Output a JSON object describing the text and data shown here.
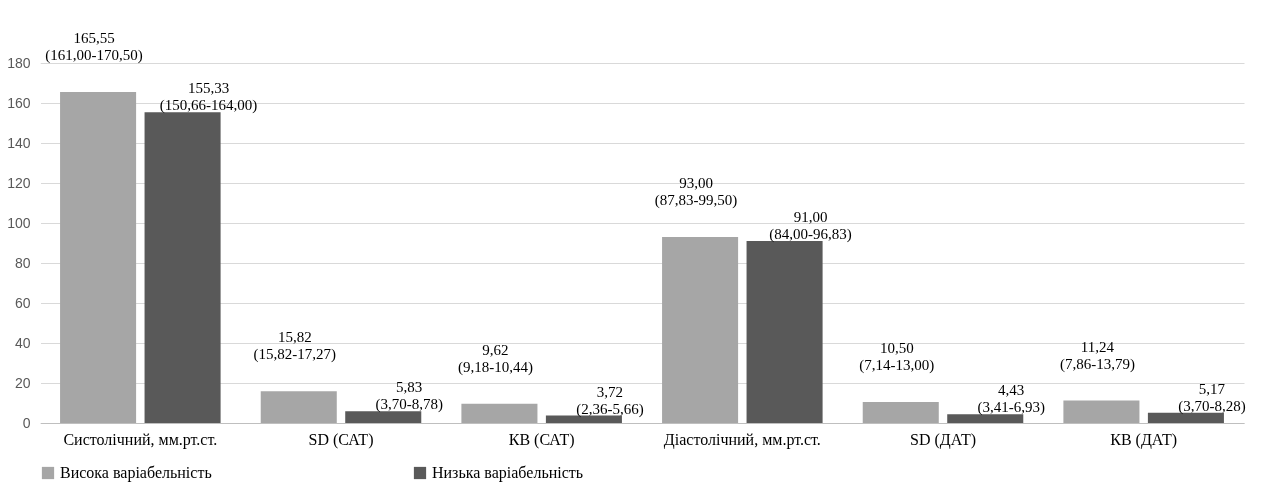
{
  "chart_data": {
    "type": "bar",
    "categories": [
      "Систолічний, мм.рт.ст.",
      "SD (САТ)",
      "КВ (САТ)",
      "Діастолічний, мм.рт.ст.",
      "SD (ДАТ)",
      "КВ (ДАТ)"
    ],
    "series": [
      {
        "name": "Висока варіабельність",
        "color": "#a6a6a6",
        "values": [
          165.55,
          15.82,
          9.62,
          93.0,
          10.5,
          11.24
        ],
        "value_labels": [
          "165,55\n(161,00-170,50)",
          "15,82\n(15,82-17,27)",
          "9,62\n(9,18-10,44)",
          "93,00\n(87,83-99,50)",
          "10,50\n(7,14-13,00)",
          "11,24\n(7,86-13,79)"
        ]
      },
      {
        "name": "Низька варіабельність",
        "color": "#595959",
        "values": [
          155.33,
          5.83,
          3.72,
          91.0,
          4.43,
          5.17
        ],
        "value_labels": [
          "155,33\n(150,66-164,00)",
          "5,83\n(3,70-8,78)",
          "3,72\n(2,36-5,66)",
          "91,00\n(84,00-96,83)",
          "4,43\n(3,41-6,93)",
          "5,17\n(3,70-8,28)"
        ]
      }
    ],
    "ylim": [
      0,
      180
    ],
    "yticks": [
      0,
      20,
      40,
      60,
      80,
      100,
      120,
      140,
      160,
      180
    ],
    "grid": "y",
    "legend": "bottom"
  }
}
